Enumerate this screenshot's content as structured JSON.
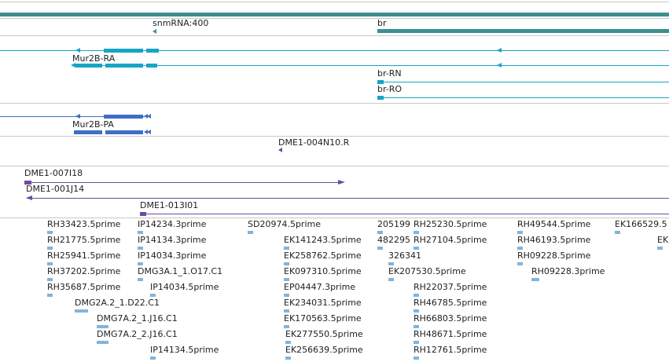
{
  "tracks": {
    "scaffold": {
      "snmrna_label": "snmRNA:400",
      "br_label": "br"
    },
    "transcripts": {
      "mur2b_ra": "Mur2B-RA",
      "br_rn": "br-RN",
      "br_ro": "br-RO"
    },
    "cds": {
      "mur2b_pa": "Mur2B-PA"
    },
    "bacs": {
      "dme1_004n10r": "DME1-004N10.R",
      "dme1_007i18": "DME1-007I18",
      "dme1_001j14": "DME1-001J14",
      "dme1_013i01": "DME1-013I01"
    },
    "ests": {
      "col1": [
        "RH33423.5prime",
        "RH21775.5prime",
        "RH25941.5prime",
        "RH37202.5prime",
        "RH35687.5prime"
      ],
      "dmg2a": "DMG2A.2_1.D22.C1",
      "dmg7a_j16_1": "DMG7A.2_1.J16.C1",
      "dmg7a_j16_2": "DMG7A.2_2.J16.C1",
      "col2": [
        "IP14234.3prime",
        "IP14134.3prime",
        "IP14034.3prime",
        "DMG3A.1_1.O17.C1",
        "IP14034.5prime"
      ],
      "ip14134_5": "IP14134.5prime",
      "sd20974": "SD20974.5prime",
      "col3": [
        "EK141243.5prime",
        "EK258762.5prime",
        "EK097310.5prime",
        "EP04447.3prime",
        "EK234031.5prime",
        "EK170563.5prime",
        "EK277550.5prime",
        "EK256639.5prime"
      ],
      "col4": [
        "205199",
        "482295",
        "326341",
        "EK207530.5prime"
      ],
      "col5": [
        "RH25230.5prime",
        "RH27104.5prime",
        "RH22037.5prime",
        "RH46785.5prime",
        "RH66803.5prime",
        "RH48671.5prime",
        "RH12761.5prime"
      ],
      "col6": [
        "RH49544.5prime",
        "RH46193.5prime",
        "RH09228.5prime",
        "RH09228.3prime"
      ],
      "col7_a": "EK166529.5",
      "col7_b": "EK"
    }
  },
  "colors": {
    "scaffold": "#3b8f8f",
    "transcript": "#16a5c4",
    "cds": "#3f6fc4",
    "bac": "#6d4c9e",
    "est": "#7eb5dc"
  }
}
